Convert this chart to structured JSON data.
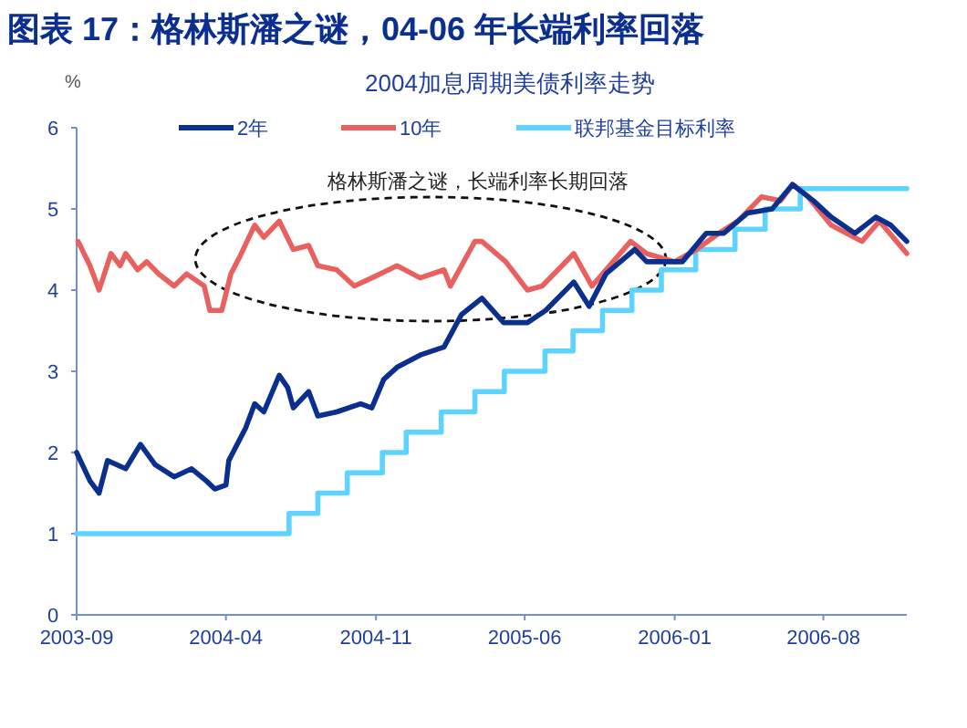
{
  "chart_data": {
    "type": "line",
    "title": "图表 17：格林斯潘之谜，04-06 年长端利率回落",
    "subtitle": "2004加息周期美债利率走势",
    "ylabel": "%",
    "annotations": [
      "格林斯潘之谜，长端利率长期回落"
    ],
    "xlim": [
      "2003-09-01",
      "2006-11-28"
    ],
    "xticks": [
      "2003-09",
      "2004-04",
      "2004-11",
      "2005-06",
      "2006-01",
      "2006-08"
    ],
    "ylim": [
      0,
      6
    ],
    "yticks": [
      0,
      1,
      2,
      3,
      4,
      5,
      6
    ],
    "legend": "top",
    "series": [
      {
        "name": "2年",
        "color": "#0b2f8f",
        "type": "line",
        "x": [
          "2003-09-01",
          "2003-09-20",
          "2003-10-03",
          "2003-10-15",
          "2003-11-10",
          "2003-12-01",
          "2003-12-22",
          "2004-01-18",
          "2004-02-12",
          "2004-03-04",
          "2004-03-16",
          "2004-04-01",
          "2004-04-05",
          "2004-04-29",
          "2004-05-12",
          "2004-05-25",
          "2004-06-16",
          "2004-06-28",
          "2004-07-06",
          "2004-07-28",
          "2004-08-10",
          "2004-09-06",
          "2004-10-10",
          "2004-10-26",
          "2004-11-12",
          "2004-12-01",
          "2005-01-03",
          "2005-02-06",
          "2005-03-03",
          "2005-04-01",
          "2005-05-02",
          "2005-06-05",
          "2005-07-01",
          "2005-08-10",
          "2005-09-01",
          "2005-09-25",
          "2005-11-05",
          "2005-11-22",
          "2006-01-12",
          "2006-02-15",
          "2006-03-12",
          "2006-04-15",
          "2006-05-20",
          "2006-06-18",
          "2006-07-18",
          "2006-08-12",
          "2006-09-15",
          "2006-10-15",
          "2006-11-05",
          "2006-11-28"
        ],
        "values": [
          2.0,
          1.65,
          1.5,
          1.9,
          1.8,
          2.1,
          1.85,
          1.7,
          1.8,
          1.65,
          1.55,
          1.6,
          1.9,
          2.3,
          2.6,
          2.5,
          2.95,
          2.8,
          2.55,
          2.75,
          2.45,
          2.5,
          2.6,
          2.55,
          2.9,
          3.05,
          3.2,
          3.3,
          3.7,
          3.9,
          3.6,
          3.6,
          3.75,
          4.1,
          3.8,
          4.2,
          4.5,
          4.35,
          4.35,
          4.7,
          4.7,
          4.95,
          5.0,
          5.3,
          5.1,
          4.9,
          4.7,
          4.9,
          4.8,
          4.6
        ]
      },
      {
        "name": "10年",
        "color": "#e8615f",
        "type": "line",
        "x": [
          "2003-09-03",
          "2003-09-20",
          "2003-10-03",
          "2003-10-20",
          "2003-11-02",
          "2003-11-10",
          "2003-11-27",
          "2003-12-10",
          "2003-12-27",
          "2004-01-18",
          "2004-02-05",
          "2004-03-01",
          "2004-03-09",
          "2004-03-26",
          "2004-04-08",
          "2004-04-20",
          "2004-05-12",
          "2004-05-25",
          "2004-06-16",
          "2004-07-06",
          "2004-07-28",
          "2004-08-10",
          "2004-09-06",
          "2004-10-01",
          "2004-10-26",
          "2004-12-01",
          "2005-01-03",
          "2005-02-06",
          "2005-02-15",
          "2005-03-22",
          "2005-04-01",
          "2005-05-05",
          "2005-06-05",
          "2005-06-26",
          "2005-08-10",
          "2005-09-05",
          "2005-09-25",
          "2005-10-30",
          "2005-11-22",
          "2006-01-01",
          "2006-02-01",
          "2006-03-05",
          "2006-04-01",
          "2006-05-05",
          "2006-06-01",
          "2006-06-18",
          "2006-07-10",
          "2006-08-12",
          "2006-09-25",
          "2006-10-20",
          "2006-11-28"
        ],
        "values": [
          4.6,
          4.3,
          4.0,
          4.45,
          4.3,
          4.45,
          4.25,
          4.35,
          4.2,
          4.05,
          4.2,
          4.05,
          3.75,
          3.75,
          4.2,
          4.4,
          4.8,
          4.65,
          4.85,
          4.5,
          4.55,
          4.3,
          4.25,
          4.05,
          4.15,
          4.3,
          4.15,
          4.25,
          4.05,
          4.6,
          4.6,
          4.35,
          4.0,
          4.05,
          4.45,
          4.05,
          4.25,
          4.6,
          4.45,
          4.35,
          4.5,
          4.7,
          4.85,
          5.15,
          5.1,
          5.3,
          5.15,
          4.8,
          4.6,
          4.85,
          4.45
        ]
      },
      {
        "name": "联邦基金目标利率",
        "color": "#5fd3ff",
        "type": "step",
        "x": [
          "2003-09-01",
          "2004-06-30",
          "2004-08-10",
          "2004-09-21",
          "2004-11-10",
          "2004-12-14",
          "2005-02-02",
          "2005-03-22",
          "2005-05-03",
          "2005-06-30",
          "2005-08-09",
          "2005-09-20",
          "2005-11-01",
          "2005-12-13",
          "2006-01-31",
          "2006-03-28",
          "2006-05-10",
          "2006-06-29",
          "2006-11-28"
        ],
        "values": [
          1.0,
          1.25,
          1.5,
          1.75,
          2.0,
          2.25,
          2.5,
          2.75,
          3.0,
          3.25,
          3.5,
          3.75,
          4.0,
          4.25,
          4.5,
          4.75,
          5.0,
          5.25,
          5.25
        ]
      }
    ]
  }
}
